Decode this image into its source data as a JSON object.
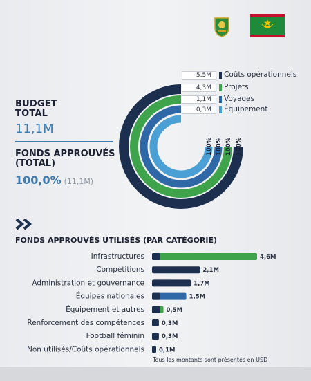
{
  "header": {
    "badge_icon": "federation-crest-icon",
    "flag_icon": "mauritania-flag-icon"
  },
  "budget": {
    "title_line1": "BUDGET",
    "title_line2": "TOTAL",
    "value": "11,1M"
  },
  "fonds": {
    "title_line1": "FONDS APPROUVÉS",
    "title_line2": "(TOTAL)",
    "value": "100,0%",
    "sub": "(11,1M)"
  },
  "colors": {
    "navy": "#1d2f4f",
    "green": "#3ea34a",
    "blue": "#2f68a6",
    "light_blue": "#4aa0d4"
  },
  "chart_data": [
    {
      "type": "pie",
      "series": [
        {
          "name": "Coûts opérationnels",
          "value_label": "5,5M",
          "value": 5.5,
          "percent_label": "100%",
          "color": "#1d2f4f"
        },
        {
          "name": "Projets",
          "value_label": "4,3M",
          "value": 4.3,
          "percent_label": "100%",
          "color": "#3ea34a"
        },
        {
          "name": "Voyages",
          "value_label": "1,1M",
          "value": 1.1,
          "percent_label": "100%",
          "color": "#2f68a6"
        },
        {
          "name": "Équipement",
          "value_label": "0,3M",
          "value": 0.3,
          "percent_label": "100%",
          "color": "#4aa0d4"
        }
      ]
    },
    {
      "type": "bar",
      "title": "FONDS APPROUVÉS UTILISÉS (PAR CATÉGORIE)",
      "categories": [
        "Infrastructures",
        "Compétitions",
        "Administration et gouvernance",
        "Équipes nationales",
        "Équipement et autres",
        "Renforcement des compétences",
        "Football féminin",
        "Non utilisés/Coûts opérationnels"
      ],
      "values": [
        4.6,
        2.1,
        1.7,
        1.5,
        0.5,
        0.3,
        0.3,
        0.1
      ],
      "value_labels": [
        "4,6M",
        "2,1M",
        "1,7M",
        "1,5M",
        "0,5M",
        "0,3M",
        "0,3M",
        "0,1M"
      ],
      "colors": [
        "#3ea34a",
        "#1d2f4f",
        "#1d2f4f",
        "#2f68a6",
        "#3ea34a",
        "#1d2f4f",
        "#1d2f4f",
        "#1d2f4f"
      ],
      "note": "Tous les montants sont présentés en USD"
    }
  ]
}
